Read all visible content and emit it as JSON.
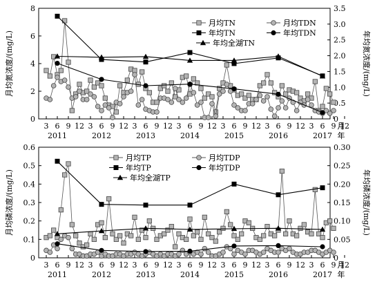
{
  "chart_data": [
    {
      "type": "line",
      "ylabel": "月均氮浓度/(mg/L)",
      "y2label": "年均氮浓度/(mg/L)",
      "xlabel": "月\n年",
      "ylim": [
        0,
        8
      ],
      "y2lim": [
        0,
        3.5
      ],
      "yticks": [
        "0",
        "2",
        "4",
        "6",
        "8"
      ],
      "y2ticks": [
        "0",
        "0.5",
        "1.0",
        "1.5",
        "2.0",
        "2.5",
        "3.0",
        "3.5"
      ],
      "month_ticks": [
        "3",
        "6",
        "9",
        "12",
        "3",
        "6",
        "9",
        "12",
        "3",
        "6",
        "9",
        "12",
        "3",
        "6",
        "9",
        "12",
        "3",
        "6",
        "9",
        "12",
        "3",
        "6",
        "9",
        "12",
        "3",
        "6",
        "9",
        "12"
      ],
      "year_ticks": [
        "2011",
        "2012",
        "2013",
        "2014",
        "2015",
        "2016",
        "2017"
      ],
      "legend": {
        "placement": "top-right"
      },
      "series": [
        {
          "name": "月均TN",
          "axis": "left",
          "marker": "square-open",
          "color": "#555555",
          "values": [
            3.5,
            3.1,
            4.5,
            3.2,
            3.5,
            7.1,
            4.1,
            0.6,
            1.8,
            2.5,
            1.9,
            2.0,
            2.8,
            2.3,
            2.6,
            2.4,
            1.5,
            1.0,
            0.9,
            0.5,
            2.4,
            1.9,
            2.8,
            3.6,
            3.5,
            2.5,
            3.4,
            2.2,
            1.9,
            1.2,
            1.2,
            2.2,
            2.4,
            2.0,
            2.6,
            1.6,
            2.1,
            3.0,
            3.1,
            1.8,
            2.9,
            2.6,
            2.2,
            1.5,
            1.8,
            1.6,
            0.5,
            2.2,
            2.6,
            3.9,
            2.4,
            2.1,
            1.7,
            1.8,
            1.5,
            1.7,
            1.4,
            1.4,
            2.4,
            2.6,
            3.2,
            2.6,
            1.9,
            1.6,
            2.4,
            1.8,
            2.1,
            2.0,
            1.9,
            1.5,
            1.3,
            1.8,
            1.5,
            2.7,
            0.6,
            0.9,
            2.2,
            1.8,
            1.2
          ]
        },
        {
          "name": "月均TDN",
          "axis": "left",
          "marker": "circle-open",
          "color": "#555555",
          "values": [
            1.5,
            1.4,
            2.4,
            3.0,
            2.7,
            2.8,
            2.3,
            1.5,
            1.6,
            2.0,
            1.4,
            1.4,
            1.8,
            1.6,
            0.9,
            0.6,
            1.0,
            0.8,
            0.1,
            1.2,
            1.1,
            1.6,
            1.9,
            2.0,
            3.2,
            1.0,
            1.4,
            0.7,
            0.6,
            0.5,
            0.5,
            1.5,
            1.5,
            1.4,
            1.2,
            2.2,
            1.4,
            1.2,
            1.5,
            2.5,
            1.9,
            1.0,
            1.2,
            0.1,
            0.1,
            1.1,
            0.2,
            1.8,
            2.0,
            2.5,
            2.0,
            1.0,
            0.8,
            0.6,
            0.6,
            1.1,
            1.1,
            1.4,
            1.7,
            1.3,
            1.6,
            0.7,
            0.2,
            0.8,
            1.3,
            0.8,
            1.5,
            1.2,
            0.6,
            1.2,
            1.0,
            1.4,
            1.0,
            0.6,
            0.5,
            0.4,
            0.6,
            0.4,
            0.6
          ]
        },
        {
          "name": "年均TN",
          "axis": "right",
          "marker": "square-filled",
          "color": "#000000",
          "x": [
            4,
            16,
            28,
            40,
            52,
            64,
            76
          ],
          "values": [
            3.25,
            1.88,
            1.8,
            2.1,
            1.75,
            1.93,
            1.36
          ]
        },
        {
          "name": "年均TDN",
          "axis": "right",
          "marker": "circle-filled",
          "color": "#000000",
          "x": [
            4,
            16,
            28,
            40,
            52,
            64,
            76
          ],
          "values": [
            1.76,
            1.25,
            1.05,
            1.1,
            0.95,
            0.78,
            0.2
          ]
        },
        {
          "name": "年均全湖TN",
          "axis": "right",
          "marker": "triangle-filled",
          "color": "#000000",
          "x": [
            4,
            16,
            28,
            40,
            52,
            64,
            76
          ],
          "values": [
            1.98,
            1.95,
            1.97,
            1.85,
            1.85,
            1.98,
            1.35
          ]
        }
      ]
    },
    {
      "type": "line",
      "ylabel": "月均磷浓度/(mg/L)",
      "y2label": "年均磷浓度/(mg/L)",
      "xlabel": "月\n年",
      "ylim": [
        0,
        0.6
      ],
      "y2lim": [
        0,
        0.3
      ],
      "yticks": [
        "0",
        "0.1",
        "0.2",
        "0.3",
        "0.4",
        "0.5",
        "0.6"
      ],
      "y2ticks": [
        "0",
        "0.05",
        "0.10",
        "0.15",
        "0.20",
        "0.25",
        "0.30"
      ],
      "month_ticks": [
        "3",
        "6",
        "9",
        "12",
        "3",
        "6",
        "9",
        "12",
        "3",
        "6",
        "9",
        "12",
        "3",
        "6",
        "9",
        "12",
        "3",
        "6",
        "9",
        "12",
        "3",
        "6",
        "9",
        "12",
        "3",
        "6",
        "9",
        "12"
      ],
      "year_ticks": [
        "2011",
        "2012",
        "2013",
        "2014",
        "2015",
        "2016",
        "2017"
      ],
      "legend": {
        "placement": "top-center"
      },
      "series": [
        {
          "name": "月均TP",
          "axis": "left",
          "marker": "square-open",
          "color": "#555555",
          "values": [
            0.11,
            0.12,
            0.15,
            0.11,
            0.26,
            0.45,
            0.51,
            0.18,
            0.12,
            0.08,
            0.06,
            0.07,
            0.13,
            0.1,
            0.18,
            0.19,
            0.11,
            0.32,
            0.13,
            0.1,
            0.12,
            0.08,
            0.13,
            0.12,
            0.22,
            0.1,
            0.15,
            0.11,
            0.2,
            0.16,
            0.1,
            0.12,
            0.13,
            0.15,
            0.17,
            0.06,
            0.13,
            0.11,
            0.1,
            0.21,
            0.12,
            0.14,
            0.1,
            0.22,
            0.13,
            0.11,
            0.09,
            0.14,
            0.16,
            0.25,
            0.18,
            0.12,
            0.1,
            0.13,
            0.2,
            0.19,
            0.16,
            0.11,
            0.1,
            0.12,
            0.17,
            0.13,
            0.12,
            0.15,
            0.47,
            0.13,
            0.2,
            0.13,
            0.12,
            0.16,
            0.18,
            0.14,
            0.13,
            0.37,
            0.13,
            0.11,
            0.19,
            0.2,
            0.16
          ]
        },
        {
          "name": "月均TDP",
          "axis": "left",
          "marker": "circle-open",
          "color": "#555555",
          "values": [
            0.04,
            0.03,
            0.07,
            0.05,
            0.1,
            0.12,
            0.11,
            0.05,
            0.02,
            0.02,
            0.01,
            0.01,
            0.02,
            0.02,
            0.03,
            0.01,
            0.02,
            0.01,
            0.01,
            0.02,
            0.02,
            0.01,
            0.02,
            0.02,
            0.03,
            0.02,
            0.01,
            0.02,
            0.03,
            0.02,
            0.01,
            0.02,
            0.01,
            0.02,
            0.02,
            0.01,
            0.02,
            0.04,
            0.02,
            0.03,
            0.02,
            0.03,
            0.02,
            0.05,
            0.03,
            0.01,
            0.01,
            0.02,
            0.03,
            0.06,
            0.05,
            0.02,
            0.04,
            0.03,
            0.02,
            0.04,
            0.04,
            0.03,
            0.02,
            0.03,
            0.05,
            0.04,
            0.03,
            0.03,
            0.05,
            0.04,
            0.05,
            0.03,
            0.02,
            0.02,
            0.03,
            0.03,
            0.04,
            0.04,
            0.03,
            0.02,
            0.03,
            0.04,
            0.03
          ]
        },
        {
          "name": "年均TP",
          "axis": "right",
          "marker": "square-filled",
          "color": "#000000",
          "x": [
            4,
            16,
            28,
            40,
            52,
            64,
            76
          ],
          "values": [
            0.262,
            0.145,
            0.143,
            0.143,
            0.2,
            0.171,
            0.19
          ]
        },
        {
          "name": "年均TDP",
          "axis": "right",
          "marker": "circle-filled",
          "color": "#000000",
          "x": [
            4,
            16,
            28,
            40,
            52,
            64,
            76
          ],
          "values": [
            0.038,
            0.02,
            0.017,
            0.018,
            0.032,
            0.033,
            0.03
          ]
        },
        {
          "name": "年均全湖TP",
          "axis": "right",
          "marker": "triangle-filled",
          "color": "#000000",
          "x": [
            4,
            16,
            28,
            40,
            52,
            64,
            76
          ],
          "values": [
            0.065,
            0.073,
            0.08,
            0.077,
            0.079,
            0.08,
            0.077
          ]
        }
      ]
    }
  ]
}
